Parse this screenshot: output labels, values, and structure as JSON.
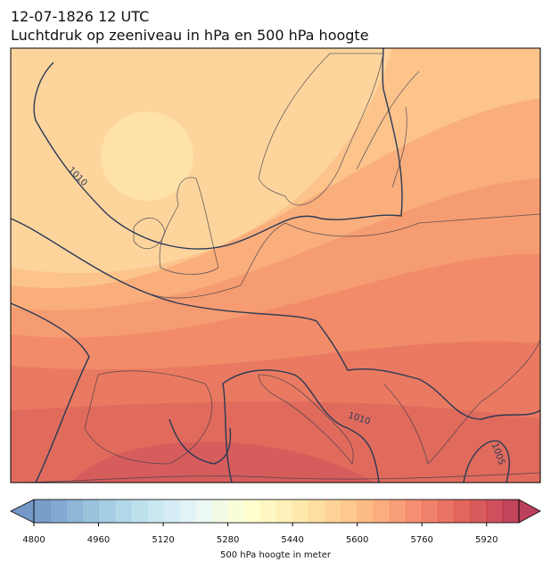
{
  "header": {
    "date": "12-07-1826 12 UTC",
    "title": "Luchtdruk op zeeniveau in hPa en 500 hPa hoogte"
  },
  "map": {
    "contour_labels": [
      "1010",
      "1010",
      "1005"
    ]
  },
  "colorbar": {
    "label": "500 hPa hoogte in meter",
    "lim": [
      4800,
      6000
    ],
    "ticks": [
      4800,
      4960,
      5120,
      5280,
      5440,
      5600,
      5760,
      5920
    ]
  }
}
